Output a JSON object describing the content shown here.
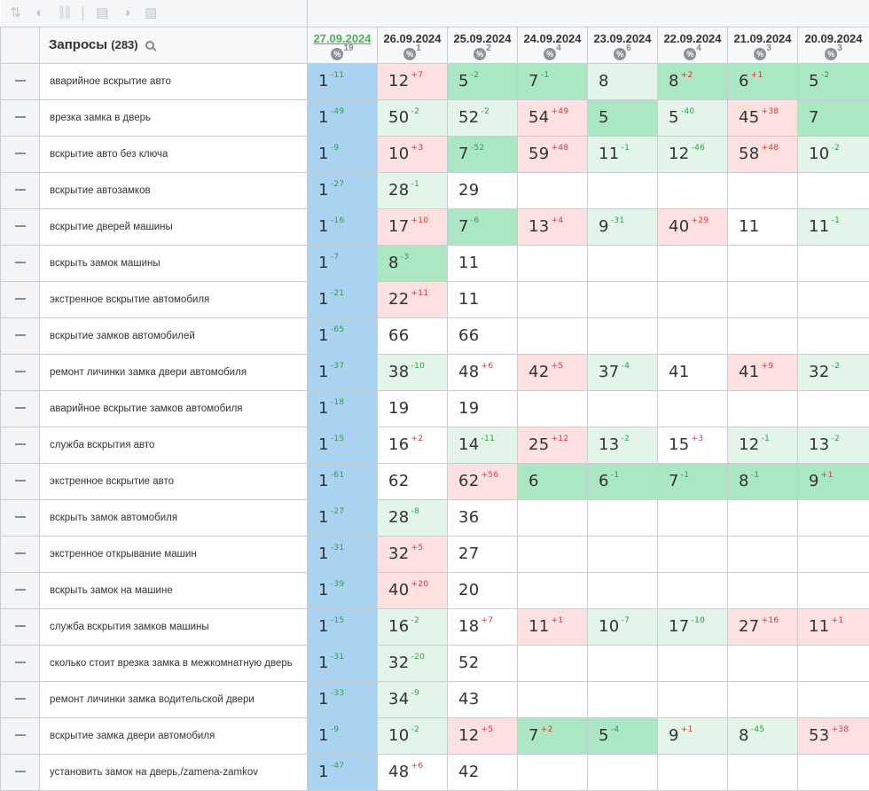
{
  "toolbar": {
    "icons": [
      "sort-icon",
      "toggle-icon",
      "link-icon",
      "calendar-icon",
      "contrast-icon",
      "text-icon"
    ]
  },
  "header": {
    "query_label": "Запросы",
    "query_count": "(283)"
  },
  "dates": [
    {
      "date": "27.09.2024",
      "count": "19"
    },
    {
      "date": "26.09.2024",
      "count": "1"
    },
    {
      "date": "25.09.2024",
      "count": "2"
    },
    {
      "date": "24.09.2024",
      "count": "4"
    },
    {
      "date": "23.09.2024",
      "count": "6"
    },
    {
      "date": "22.09.2024",
      "count": "4"
    },
    {
      "date": "21.09.2024",
      "count": "3"
    },
    {
      "date": "20.09.2024",
      "count": "3"
    }
  ],
  "percent_symbol": "%",
  "rows": [
    {
      "query": "аварийное вскрытие авто",
      "cells": [
        {
          "v": "1",
          "d": "-11",
          "c": "first"
        },
        {
          "v": "12",
          "d": "+7",
          "c": "red"
        },
        {
          "v": "5",
          "d": "-2",
          "c": "green"
        },
        {
          "v": "7",
          "d": "-1",
          "c": "green"
        },
        {
          "v": "8",
          "d": "",
          "c": "lgreen"
        },
        {
          "v": "8",
          "d": "+2",
          "c": "green"
        },
        {
          "v": "6",
          "d": "+1",
          "c": "green"
        },
        {
          "v": "5",
          "d": "-2",
          "c": "green"
        }
      ]
    },
    {
      "query": "врезка замка в дверь",
      "cells": [
        {
          "v": "1",
          "d": "-49",
          "c": "first"
        },
        {
          "v": "50",
          "d": "-2",
          "c": "lgreen"
        },
        {
          "v": "52",
          "d": "-2",
          "c": "lgreen"
        },
        {
          "v": "54",
          "d": "+49",
          "c": "red"
        },
        {
          "v": "5",
          "d": "",
          "c": "green"
        },
        {
          "v": "5",
          "d": "-40",
          "c": "lgreen"
        },
        {
          "v": "45",
          "d": "+38",
          "c": "red"
        },
        {
          "v": "7",
          "d": "",
          "c": "green"
        }
      ]
    },
    {
      "query": "вскрытие авто без ключа",
      "cells": [
        {
          "v": "1",
          "d": "-9",
          "c": "first"
        },
        {
          "v": "10",
          "d": "+3",
          "c": "red"
        },
        {
          "v": "7",
          "d": "-52",
          "c": "green"
        },
        {
          "v": "59",
          "d": "+48",
          "c": "red"
        },
        {
          "v": "11",
          "d": "-1",
          "c": "lgreen"
        },
        {
          "v": "12",
          "d": "-46",
          "c": "lgreen"
        },
        {
          "v": "58",
          "d": "+48",
          "c": "red"
        },
        {
          "v": "10",
          "d": "-2",
          "c": "lgreen"
        }
      ]
    },
    {
      "query": "вскрытие автозамков",
      "cells": [
        {
          "v": "1",
          "d": "-27",
          "c": "first"
        },
        {
          "v": "28",
          "d": "-1",
          "c": "lgreen"
        },
        {
          "v": "29",
          "d": "",
          "c": "white"
        },
        {
          "v": "",
          "d": "",
          "c": "empty"
        },
        {
          "v": "",
          "d": "",
          "c": "empty"
        },
        {
          "v": "",
          "d": "",
          "c": "empty"
        },
        {
          "v": "",
          "d": "",
          "c": "empty"
        },
        {
          "v": "",
          "d": "",
          "c": "empty"
        }
      ]
    },
    {
      "query": "вскрытие дверей машины",
      "cells": [
        {
          "v": "1",
          "d": "-16",
          "c": "first"
        },
        {
          "v": "17",
          "d": "+10",
          "c": "red"
        },
        {
          "v": "7",
          "d": "-6",
          "c": "green"
        },
        {
          "v": "13",
          "d": "+4",
          "c": "red"
        },
        {
          "v": "9",
          "d": "-31",
          "c": "lgreen"
        },
        {
          "v": "40",
          "d": "+29",
          "c": "red"
        },
        {
          "v": "11",
          "d": "",
          "c": "white"
        },
        {
          "v": "11",
          "d": "-1",
          "c": "lgreen"
        }
      ]
    },
    {
      "query": "вскрыть замок машины",
      "cells": [
        {
          "v": "1",
          "d": "-7",
          "c": "first"
        },
        {
          "v": "8",
          "d": "-3",
          "c": "green"
        },
        {
          "v": "11",
          "d": "",
          "c": "white"
        },
        {
          "v": "",
          "d": "",
          "c": "empty"
        },
        {
          "v": "",
          "d": "",
          "c": "empty"
        },
        {
          "v": "",
          "d": "",
          "c": "empty"
        },
        {
          "v": "",
          "d": "",
          "c": "empty"
        },
        {
          "v": "",
          "d": "",
          "c": "empty"
        }
      ]
    },
    {
      "query": "экстренное вскрытие автомобиля",
      "cells": [
        {
          "v": "1",
          "d": "-21",
          "c": "first"
        },
        {
          "v": "22",
          "d": "+11",
          "c": "red"
        },
        {
          "v": "11",
          "d": "",
          "c": "white"
        },
        {
          "v": "",
          "d": "",
          "c": "empty"
        },
        {
          "v": "",
          "d": "",
          "c": "empty"
        },
        {
          "v": "",
          "d": "",
          "c": "empty"
        },
        {
          "v": "",
          "d": "",
          "c": "empty"
        },
        {
          "v": "",
          "d": "",
          "c": "empty"
        }
      ]
    },
    {
      "query": "вскрытие замков автомобилей",
      "cells": [
        {
          "v": "1",
          "d": "-65",
          "c": "first"
        },
        {
          "v": "66",
          "d": "",
          "c": "white"
        },
        {
          "v": "66",
          "d": "",
          "c": "white"
        },
        {
          "v": "",
          "d": "",
          "c": "empty"
        },
        {
          "v": "",
          "d": "",
          "c": "empty"
        },
        {
          "v": "",
          "d": "",
          "c": "empty"
        },
        {
          "v": "",
          "d": "",
          "c": "empty"
        },
        {
          "v": "",
          "d": "",
          "c": "empty"
        }
      ]
    },
    {
      "query": "ремонт личинки замка двери автомобиля",
      "cells": [
        {
          "v": "1",
          "d": "-37",
          "c": "first"
        },
        {
          "v": "38",
          "d": "-10",
          "c": "lgreen"
        },
        {
          "v": "48",
          "d": "+6",
          "c": "white"
        },
        {
          "v": "42",
          "d": "+5",
          "c": "red"
        },
        {
          "v": "37",
          "d": "-4",
          "c": "lgreen"
        },
        {
          "v": "41",
          "d": "",
          "c": "white"
        },
        {
          "v": "41",
          "d": "+9",
          "c": "red"
        },
        {
          "v": "32",
          "d": "-2",
          "c": "lgreen"
        }
      ]
    },
    {
      "query": "аварийное вскрытие замков автомобиля",
      "cells": [
        {
          "v": "1",
          "d": "-18",
          "c": "first"
        },
        {
          "v": "19",
          "d": "",
          "c": "white"
        },
        {
          "v": "19",
          "d": "",
          "c": "white"
        },
        {
          "v": "",
          "d": "",
          "c": "empty"
        },
        {
          "v": "",
          "d": "",
          "c": "empty"
        },
        {
          "v": "",
          "d": "",
          "c": "empty"
        },
        {
          "v": "",
          "d": "",
          "c": "empty"
        },
        {
          "v": "",
          "d": "",
          "c": "empty"
        }
      ]
    },
    {
      "query": "служба вскрытия авто",
      "cells": [
        {
          "v": "1",
          "d": "-15",
          "c": "first"
        },
        {
          "v": "16",
          "d": "+2",
          "c": "white"
        },
        {
          "v": "14",
          "d": "-11",
          "c": "lgreen"
        },
        {
          "v": "25",
          "d": "+12",
          "c": "red"
        },
        {
          "v": "13",
          "d": "-2",
          "c": "lgreen"
        },
        {
          "v": "15",
          "d": "+3",
          "c": "white"
        },
        {
          "v": "12",
          "d": "-1",
          "c": "lgreen"
        },
        {
          "v": "13",
          "d": "-2",
          "c": "lgreen"
        }
      ]
    },
    {
      "query": "экстренное вскрытие авто",
      "cells": [
        {
          "v": "1",
          "d": "-61",
          "c": "first"
        },
        {
          "v": "62",
          "d": "",
          "c": "white"
        },
        {
          "v": "62",
          "d": "+56",
          "c": "red"
        },
        {
          "v": "6",
          "d": "",
          "c": "green"
        },
        {
          "v": "6",
          "d": "-1",
          "c": "green"
        },
        {
          "v": "7",
          "d": "-1",
          "c": "green"
        },
        {
          "v": "8",
          "d": "-1",
          "c": "green"
        },
        {
          "v": "9",
          "d": "+1",
          "c": "green"
        }
      ]
    },
    {
      "query": "вскрыть замок автомобиля",
      "cells": [
        {
          "v": "1",
          "d": "-27",
          "c": "first"
        },
        {
          "v": "28",
          "d": "-8",
          "c": "lgreen"
        },
        {
          "v": "36",
          "d": "",
          "c": "white"
        },
        {
          "v": "",
          "d": "",
          "c": "empty"
        },
        {
          "v": "",
          "d": "",
          "c": "empty"
        },
        {
          "v": "",
          "d": "",
          "c": "empty"
        },
        {
          "v": "",
          "d": "",
          "c": "empty"
        },
        {
          "v": "",
          "d": "",
          "c": "empty"
        }
      ]
    },
    {
      "query": "экстренное открывание машин",
      "cells": [
        {
          "v": "1",
          "d": "-31",
          "c": "first"
        },
        {
          "v": "32",
          "d": "+5",
          "c": "red"
        },
        {
          "v": "27",
          "d": "",
          "c": "white"
        },
        {
          "v": "",
          "d": "",
          "c": "empty"
        },
        {
          "v": "",
          "d": "",
          "c": "empty"
        },
        {
          "v": "",
          "d": "",
          "c": "empty"
        },
        {
          "v": "",
          "d": "",
          "c": "empty"
        },
        {
          "v": "",
          "d": "",
          "c": "empty"
        }
      ]
    },
    {
      "query": "вскрыть замок на машине",
      "cells": [
        {
          "v": "1",
          "d": "-39",
          "c": "first"
        },
        {
          "v": "40",
          "d": "+20",
          "c": "red"
        },
        {
          "v": "20",
          "d": "",
          "c": "white"
        },
        {
          "v": "",
          "d": "",
          "c": "empty"
        },
        {
          "v": "",
          "d": "",
          "c": "empty"
        },
        {
          "v": "",
          "d": "",
          "c": "empty"
        },
        {
          "v": "",
          "d": "",
          "c": "empty"
        },
        {
          "v": "",
          "d": "",
          "c": "empty"
        }
      ]
    },
    {
      "query": "служба вскрытия замков машины",
      "cells": [
        {
          "v": "1",
          "d": "-15",
          "c": "first"
        },
        {
          "v": "16",
          "d": "-2",
          "c": "lgreen"
        },
        {
          "v": "18",
          "d": "+7",
          "c": "white"
        },
        {
          "v": "11",
          "d": "+1",
          "c": "red"
        },
        {
          "v": "10",
          "d": "-7",
          "c": "lgreen"
        },
        {
          "v": "17",
          "d": "-10",
          "c": "lgreen"
        },
        {
          "v": "27",
          "d": "+16",
          "c": "red"
        },
        {
          "v": "11",
          "d": "+1",
          "c": "red"
        }
      ]
    },
    {
      "query": "сколько стоит врезка замка в межкомнатную дверь",
      "cells": [
        {
          "v": "1",
          "d": "-31",
          "c": "first"
        },
        {
          "v": "32",
          "d": "-20",
          "c": "lgreen"
        },
        {
          "v": "52",
          "d": "",
          "c": "white"
        },
        {
          "v": "",
          "d": "",
          "c": "empty"
        },
        {
          "v": "",
          "d": "",
          "c": "empty"
        },
        {
          "v": "",
          "d": "",
          "c": "empty"
        },
        {
          "v": "",
          "d": "",
          "c": "empty"
        },
        {
          "v": "",
          "d": "",
          "c": "empty"
        }
      ]
    },
    {
      "query": "ремонт личинки замка водительской двери",
      "cells": [
        {
          "v": "1",
          "d": "-33",
          "c": "first"
        },
        {
          "v": "34",
          "d": "-9",
          "c": "lgreen"
        },
        {
          "v": "43",
          "d": "",
          "c": "white"
        },
        {
          "v": "",
          "d": "",
          "c": "empty"
        },
        {
          "v": "",
          "d": "",
          "c": "empty"
        },
        {
          "v": "",
          "d": "",
          "c": "empty"
        },
        {
          "v": "",
          "d": "",
          "c": "empty"
        },
        {
          "v": "",
          "d": "",
          "c": "empty"
        }
      ]
    },
    {
      "query": "вскрытие замка двери автомобиля",
      "cells": [
        {
          "v": "1",
          "d": "-9",
          "c": "first"
        },
        {
          "v": "10",
          "d": "-2",
          "c": "lgreen"
        },
        {
          "v": "12",
          "d": "+5",
          "c": "red"
        },
        {
          "v": "7",
          "d": "+2",
          "c": "green"
        },
        {
          "v": "5",
          "d": "-4",
          "c": "green"
        },
        {
          "v": "9",
          "d": "+1",
          "c": "lgreen"
        },
        {
          "v": "8",
          "d": "-45",
          "c": "lgreen"
        },
        {
          "v": "53",
          "d": "+38",
          "c": "red"
        }
      ]
    },
    {
      "query": "установить замок на дверь,/zamena-zamkov",
      "cells": [
        {
          "v": "1",
          "d": "-47",
          "c": "first"
        },
        {
          "v": "48",
          "d": "+6",
          "c": "white"
        },
        {
          "v": "42",
          "d": "",
          "c": "white"
        },
        {
          "v": "",
          "d": "",
          "c": "empty"
        },
        {
          "v": "",
          "d": "",
          "c": "empty"
        },
        {
          "v": "",
          "d": "",
          "c": "empty"
        },
        {
          "v": "",
          "d": "",
          "c": "empty"
        },
        {
          "v": "",
          "d": "",
          "c": "empty"
        }
      ]
    }
  ]
}
